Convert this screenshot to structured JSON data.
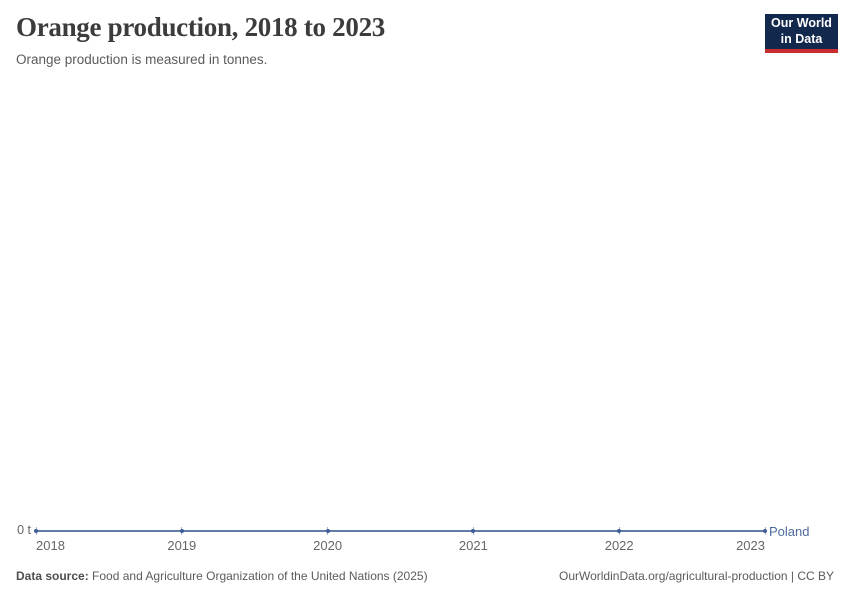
{
  "header": {
    "title": "Orange production, 2018 to 2023",
    "subtitle": "Orange production is measured in tonnes."
  },
  "logo": {
    "line1": "Our World",
    "line2": "in Data",
    "bg_color": "#12294d",
    "stripe_color": "#c82d32"
  },
  "chart_data": {
    "type": "line",
    "title": "Orange production, 2018 to 2023",
    "unit": "tonnes",
    "x": [
      2018,
      2019,
      2020,
      2021,
      2022,
      2023
    ],
    "series": [
      {
        "name": "Poland",
        "values": [
          0,
          0,
          0,
          0,
          0,
          0
        ],
        "color": "#4c6a9c"
      }
    ],
    "xlabel": "",
    "ylabel": "",
    "ylim": [
      0,
      0
    ],
    "y_tick_labels": [
      "0 t"
    ],
    "grid": false,
    "legend_position": "right-end-of-line"
  },
  "axis": {
    "y_zero_label": "0 t",
    "x_tick_labels": [
      "2018",
      "2019",
      "2020",
      "2021",
      "2022",
      "2023"
    ]
  },
  "footer": {
    "source_label": "Data source:",
    "source_text": " Food and Agriculture Organization of the United Nations (2025)",
    "link_text": "OurWorldinData.org/agricultural-production | CC BY"
  },
  "colors": {
    "line": "#4c6a9c",
    "marker": "#3f5e96",
    "tick": "#a6b3cf",
    "axis_text": "#666666",
    "title_text": "#3d3b3b",
    "subtitle_text": "#5b5b5b",
    "footer_text": "#5b5b5b"
  }
}
